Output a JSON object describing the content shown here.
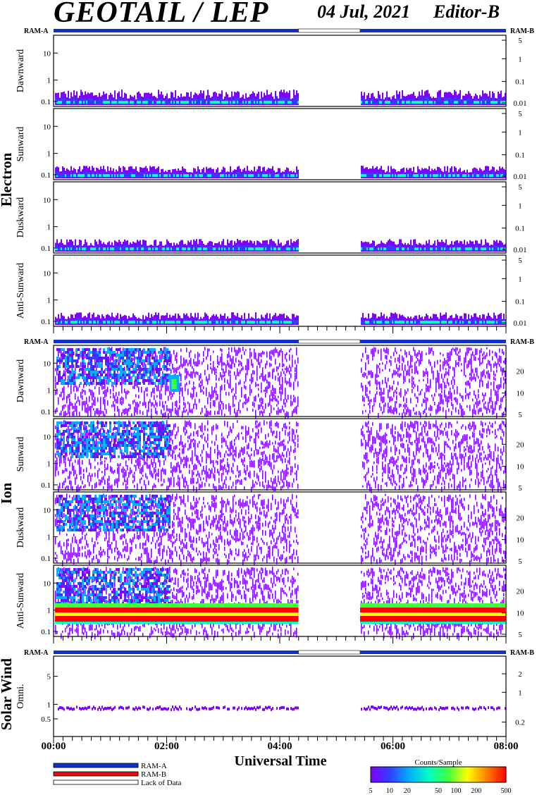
{
  "header": {
    "instrument": "GEOTAIL / LEP",
    "date": "04 Jul, 2021",
    "editor": "Editor-B"
  },
  "labels": {
    "ram_a": "RAM-A",
    "ram_b": "RAM-B",
    "xlabel": "Universal Time"
  },
  "legend": {
    "items": [
      {
        "label": "RAM-A",
        "color": "#1030c8"
      },
      {
        "label": "RAM-B",
        "color": "#e01010"
      },
      {
        "label": "Lack of Data",
        "color": "#ffffff"
      }
    ],
    "colorbar_title": "Counts/Sample",
    "colorbar_ticks": [
      "5",
      "10",
      "20",
      "50",
      "100",
      "200",
      "500"
    ]
  },
  "chart_data": {
    "type": "heatmap",
    "x_range_hours": [
      0,
      8
    ],
    "x_tick_labels": [
      "00:00",
      "02:00",
      "04:00",
      "06:00",
      "08:00"
    ],
    "data_gap_hours": [
      4.33,
      5.42
    ],
    "colorscale": [
      "#8000ff",
      "#3040ff",
      "#00b0ff",
      "#00ffc0",
      "#40ff40",
      "#ffff00",
      "#ff8000",
      "#ff0000"
    ],
    "groups": [
      {
        "name": "Electron",
        "panels": [
          {
            "name": "Dawnward",
            "left_ticks": [
              "0.1",
              "1",
              "10"
            ],
            "right_ticks": [
              "0.01",
              "0.1",
              "1",
              "5"
            ]
          },
          {
            "name": "Sunward",
            "left_ticks": [
              "0.1",
              "1",
              "10"
            ],
            "right_ticks": [
              "0.01",
              "0.1",
              "1",
              "5"
            ]
          },
          {
            "name": "Duskward",
            "left_ticks": [
              "0.1",
              "1",
              "10"
            ],
            "right_ticks": [
              "0.01",
              "0.1",
              "1",
              "5"
            ]
          },
          {
            "name": "Anti-Sunward",
            "left_ticks": [
              "0.1",
              "1",
              "10"
            ],
            "right_ticks": [
              "0.01",
              "0.1",
              "1",
              "5"
            ]
          }
        ]
      },
      {
        "name": "Ion",
        "panels": [
          {
            "name": "Dawnward",
            "left_ticks": [
              "0.1",
              "1",
              "10"
            ],
            "right_ticks": [
              "5",
              "10",
              "20"
            ]
          },
          {
            "name": "Sunward",
            "left_ticks": [
              "0.1",
              "1",
              "10"
            ],
            "right_ticks": [
              "5",
              "10",
              "20"
            ]
          },
          {
            "name": "Duskward",
            "left_ticks": [
              "0.1",
              "1",
              "10"
            ],
            "right_ticks": [
              "5",
              "10",
              "20"
            ]
          },
          {
            "name": "Anti-Sunward",
            "left_ticks": [
              "0.1",
              "1",
              "10"
            ],
            "right_ticks": [
              "5",
              "10",
              "20"
            ]
          }
        ]
      },
      {
        "name": "Solar Wind",
        "panels": [
          {
            "name": "Omni.",
            "left_ticks": [
              "0.5",
              "1",
              "5"
            ],
            "right_ticks": [
              "0.2",
              "1",
              "2"
            ]
          }
        ]
      }
    ]
  }
}
